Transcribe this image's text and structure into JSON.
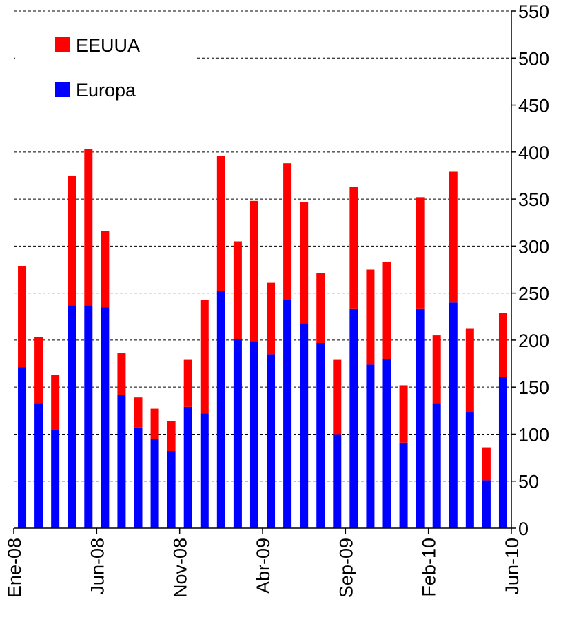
{
  "chart_data": {
    "type": "stacked_bar",
    "categories": [
      "Ene-08",
      null,
      null,
      null,
      null,
      "Jun-08",
      null,
      null,
      null,
      null,
      "Nov-08",
      null,
      null,
      null,
      null,
      "Abr-09",
      null,
      null,
      null,
      null,
      "Sep-09",
      null,
      null,
      null,
      null,
      "Feb-10",
      null,
      null,
      null,
      "Jun-10"
    ],
    "series": [
      {
        "name": "Europa",
        "color": "#0000ff",
        "values": [
          171,
          133,
          105,
          237,
          237,
          235,
          142,
          107,
          95,
          82,
          129,
          122,
          252,
          201,
          199,
          185,
          243,
          218,
          197,
          100,
          233,
          174,
          180,
          91,
          233,
          133,
          240,
          123,
          51,
          161
        ]
      },
      {
        "name": "EEUUA",
        "color": "#ff0000",
        "values": [
          108,
          70,
          58,
          138,
          166,
          81,
          44,
          32,
          32,
          32,
          50,
          121,
          144,
          104,
          149,
          76,
          145,
          129,
          74,
          79,
          130,
          101,
          103,
          61,
          119,
          72,
          139,
          89,
          35,
          68
        ]
      }
    ],
    "ylim": [
      0,
      550
    ],
    "yticks": [
      0,
      50,
      100,
      150,
      200,
      250,
      300,
      350,
      400,
      450,
      500,
      550
    ],
    "grid": true,
    "legend": "top-left"
  }
}
